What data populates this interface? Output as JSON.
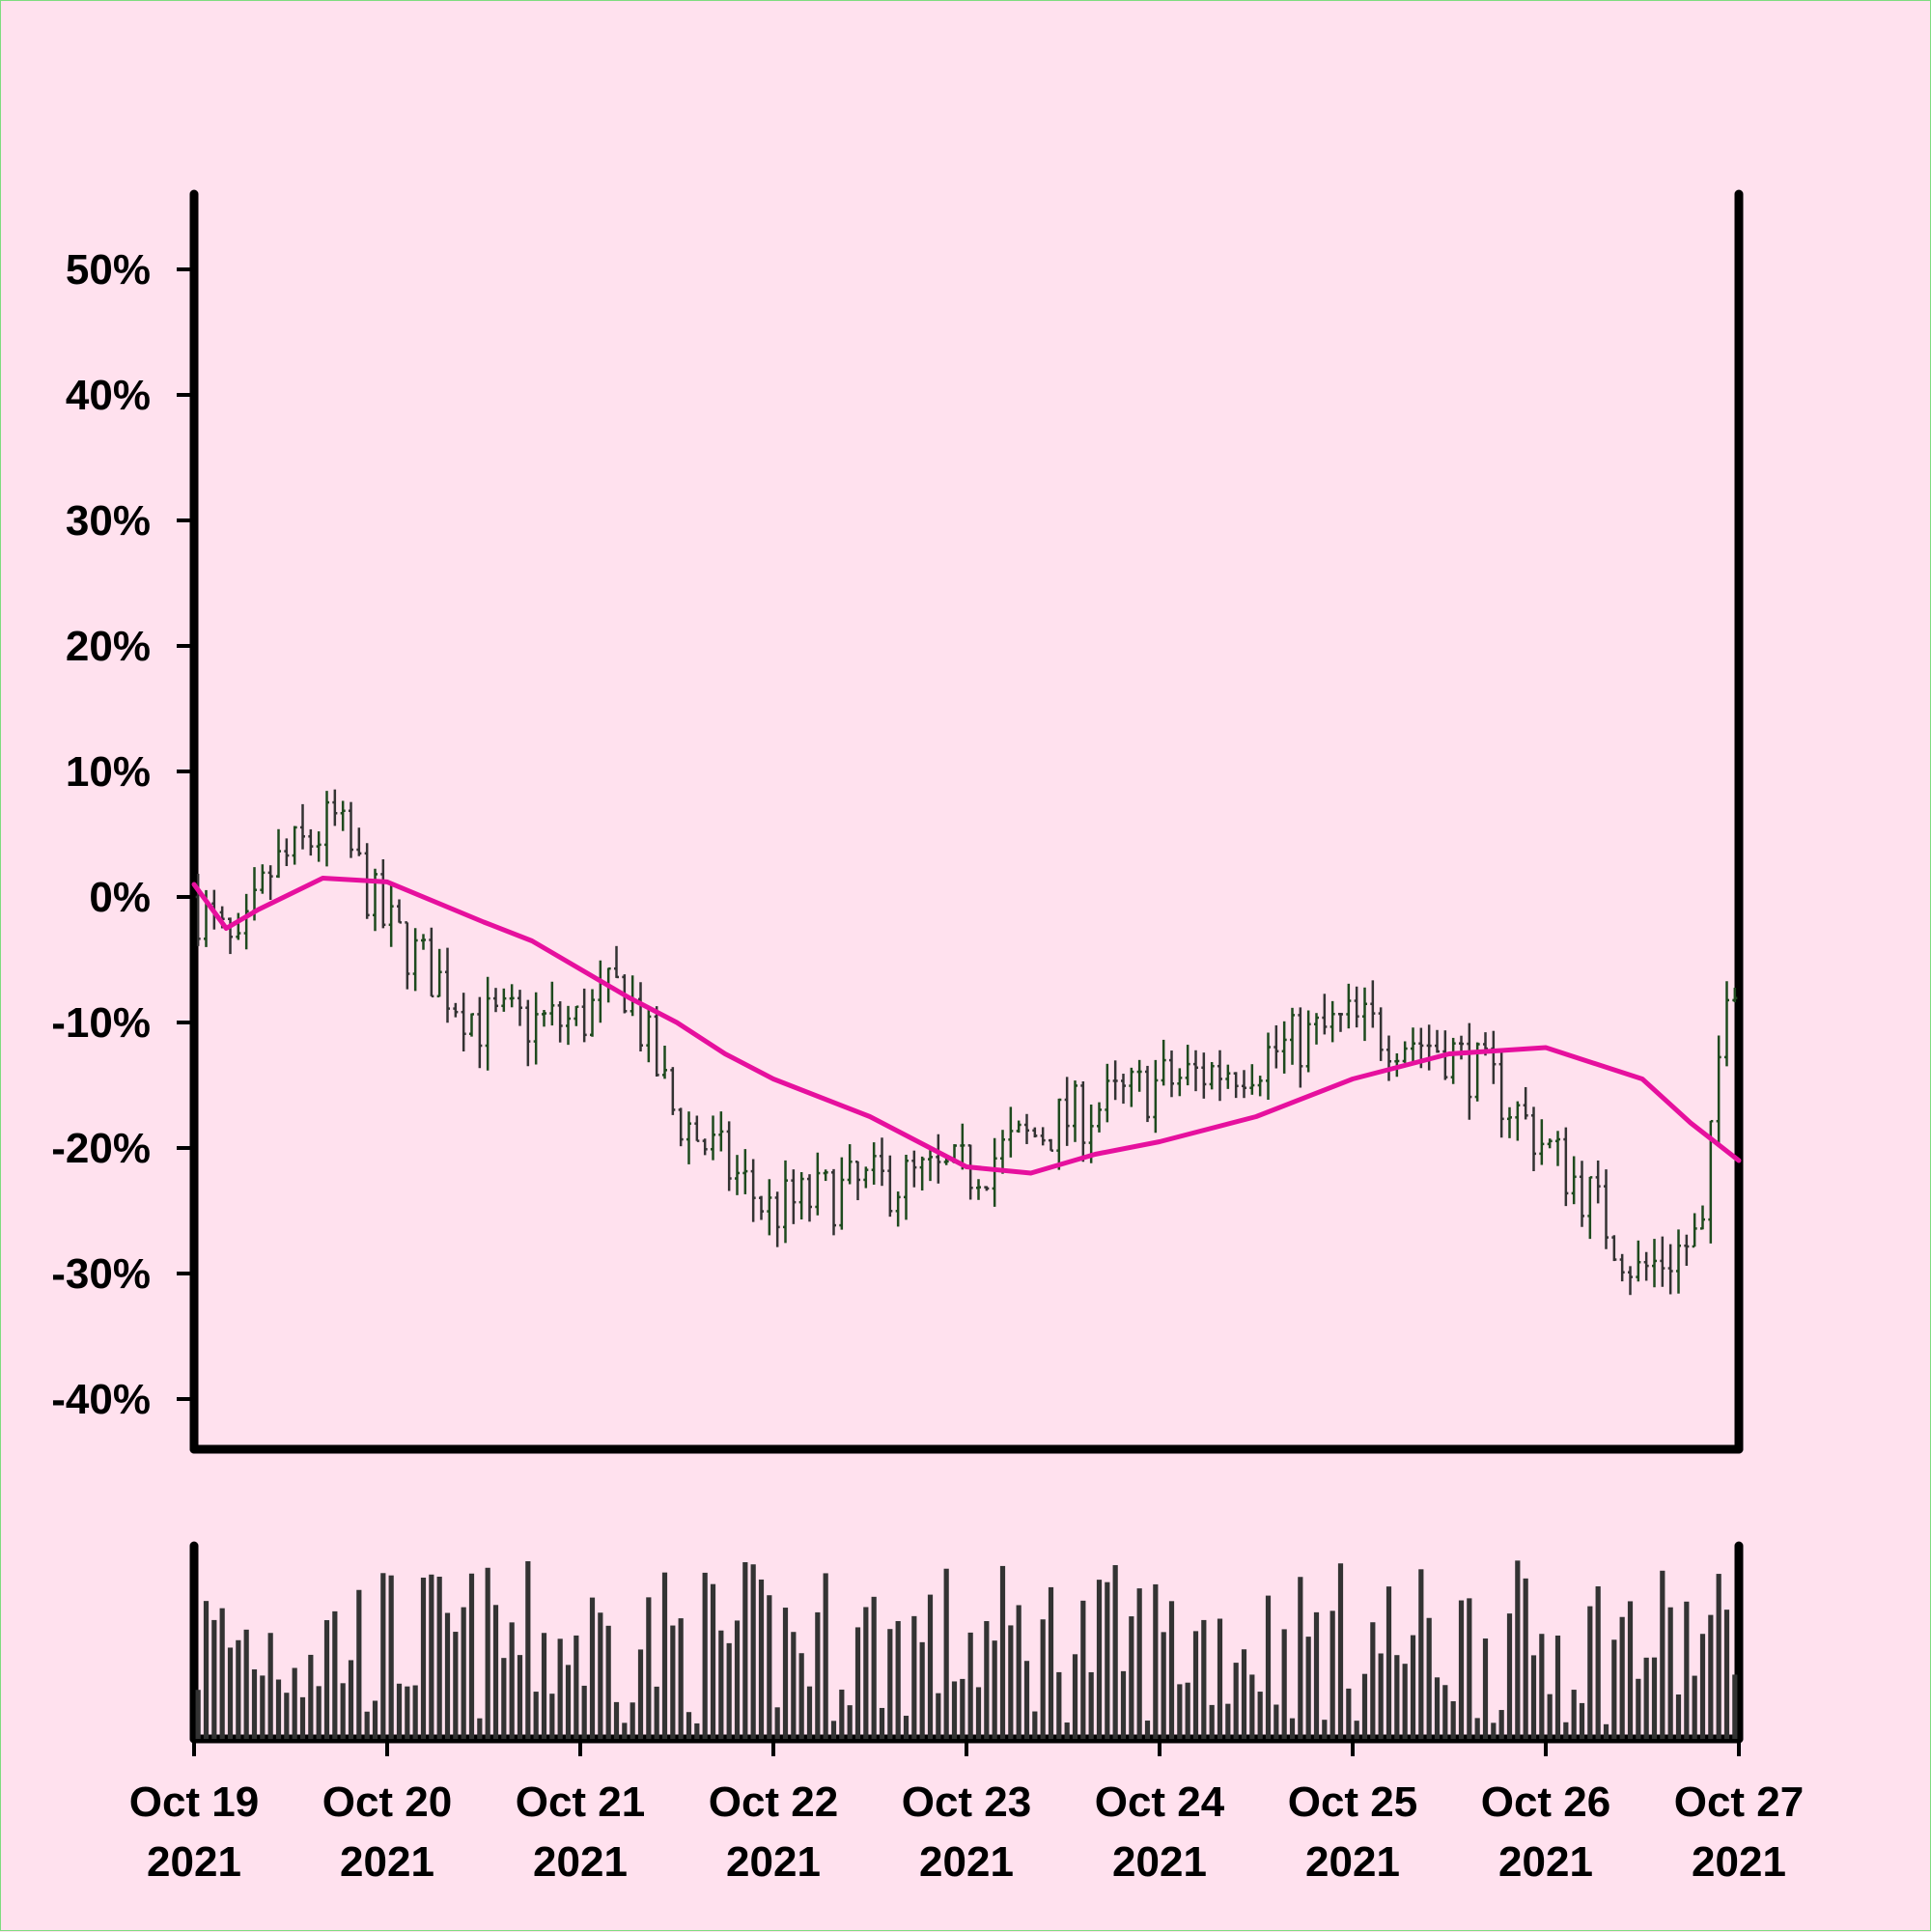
{
  "colors": {
    "background": "#ffe1ee",
    "axes": "#000000",
    "bar_up": "#1e4a1e",
    "bar_down": "#333333",
    "moving_average": "#e6109e",
    "volume": "#333333"
  },
  "chart_data": {
    "type": "ohlc",
    "title": "",
    "xlabel": "",
    "ylabel": "",
    "ylim": [
      -0.44,
      0.56
    ],
    "y_ticks": [
      {
        "value": 0.5,
        "label": "50%"
      },
      {
        "value": 0.4,
        "label": "40%"
      },
      {
        "value": 0.3,
        "label": "30%"
      },
      {
        "value": 0.2,
        "label": "20%"
      },
      {
        "value": 0.1,
        "label": "10%"
      },
      {
        "value": 0.0,
        "label": "0%"
      },
      {
        "value": -0.1,
        "label": "-10%"
      },
      {
        "value": -0.2,
        "label": "-20%"
      },
      {
        "value": -0.3,
        "label": "-30%"
      },
      {
        "value": -0.4,
        "label": "-40%"
      }
    ],
    "x_range": [
      "2021-10-19",
      "2021-10-27"
    ],
    "x_ticks": [
      {
        "date": "2021-10-19",
        "line1": "Oct 19",
        "line2": "2021"
      },
      {
        "date": "2021-10-20",
        "line1": "Oct 20",
        "line2": "2021"
      },
      {
        "date": "2021-10-21",
        "line1": "Oct 21",
        "line2": "2021"
      },
      {
        "date": "2021-10-22",
        "line1": "Oct 22",
        "line2": "2021"
      },
      {
        "date": "2021-10-23",
        "line1": "Oct 23",
        "line2": "2021"
      },
      {
        "date": "2021-10-24",
        "line1": "Oct 24",
        "line2": "2021"
      },
      {
        "date": "2021-10-25",
        "line1": "Oct 25",
        "line2": "2021"
      },
      {
        "date": "2021-10-26",
        "line1": "Oct 26",
        "line2": "2021"
      },
      {
        "date": "2021-10-27",
        "line1": "Oct 27",
        "line2": "2021"
      }
    ],
    "bar_interval_hours": 1,
    "close_path": [
      [
        "2021-10-19T00:00",
        0.0
      ],
      [
        "2021-10-19T06:00",
        -0.05
      ],
      [
        "2021-10-19T10:00",
        0.02
      ],
      [
        "2021-10-19T18:00",
        0.06
      ],
      [
        "2021-10-20T00:00",
        -0.02
      ],
      [
        "2021-10-20T12:00",
        -0.1
      ],
      [
        "2021-10-21T00:00",
        -0.1
      ],
      [
        "2021-10-21T06:00",
        -0.07
      ],
      [
        "2021-10-21T12:00",
        -0.17
      ],
      [
        "2021-10-22T00:00",
        -0.25
      ],
      [
        "2021-10-22T12:00",
        -0.23
      ],
      [
        "2021-10-23T00:00",
        -0.22
      ],
      [
        "2021-10-23T12:00",
        -0.18
      ],
      [
        "2021-10-24T00:00",
        -0.15
      ],
      [
        "2021-10-24T12:00",
        -0.13
      ],
      [
        "2021-10-25T00:00",
        -0.1
      ],
      [
        "2021-10-25T12:00",
        -0.12
      ],
      [
        "2021-10-25T18:00",
        -0.15
      ],
      [
        "2021-10-26T06:00",
        -0.24
      ],
      [
        "2021-10-26T12:00",
        -0.3
      ],
      [
        "2021-10-26T20:00",
        -0.27
      ],
      [
        "2021-10-26T23:00",
        -0.06
      ]
    ],
    "moving_average": [
      [
        "2021-10-19T00:00",
        0.01
      ],
      [
        "2021-10-19T04:00",
        -0.025
      ],
      [
        "2021-10-19T08:00",
        -0.01
      ],
      [
        "2021-10-19T16:00",
        0.015
      ],
      [
        "2021-10-20T00:00",
        0.012
      ],
      [
        "2021-10-20T12:00",
        -0.02
      ],
      [
        "2021-10-20T18:00",
        -0.035
      ],
      [
        "2021-10-21T06:00",
        -0.08
      ],
      [
        "2021-10-21T12:00",
        -0.1
      ],
      [
        "2021-10-21T18:00",
        -0.125
      ],
      [
        "2021-10-22T00:00",
        -0.145
      ],
      [
        "2021-10-22T12:00",
        -0.175
      ],
      [
        "2021-10-22T18:00",
        -0.195
      ],
      [
        "2021-10-23T00:00",
        -0.215
      ],
      [
        "2021-10-23T08:00",
        -0.22
      ],
      [
        "2021-10-23T16:00",
        -0.205
      ],
      [
        "2021-10-24T00:00",
        -0.195
      ],
      [
        "2021-10-24T12:00",
        -0.175
      ],
      [
        "2021-10-25T00:00",
        -0.145
      ],
      [
        "2021-10-25T12:00",
        -0.125
      ],
      [
        "2021-10-26T00:00",
        -0.12
      ],
      [
        "2021-10-26T12:00",
        -0.145
      ],
      [
        "2021-10-26T18:00",
        -0.18
      ],
      [
        "2021-10-27T00:00",
        -0.21
      ]
    ]
  }
}
